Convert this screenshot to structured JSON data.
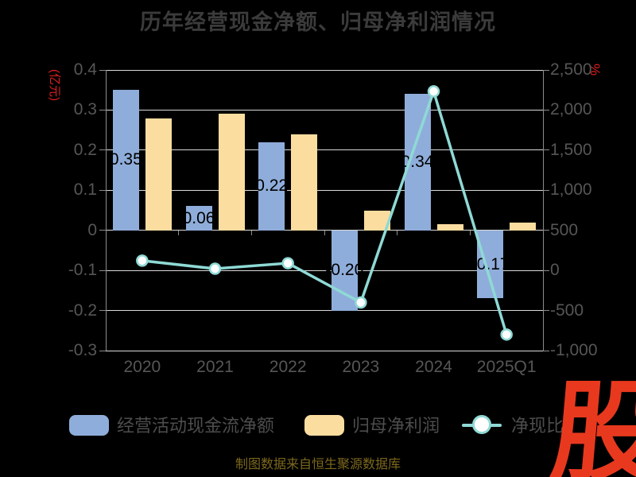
{
  "title": "历年经营现金净额、归母净利润情况",
  "left_axis_unit": "(亿元)",
  "right_axis_unit": "%",
  "source_note": "制图数据来自恒生聚源数据库",
  "logo_text": "股",
  "colors": {
    "background": "#000000",
    "title": "#3b3b3b",
    "tick_label": "#565656",
    "legend_label": "#4d4d4d",
    "bar_blue": "#8FADDA",
    "bar_yellow": "#FCDDA0",
    "line_teal": "#8FD9D5",
    "marker_fill": "#ffffff",
    "bar_label": "#000000",
    "gridline": "#d9d9d9",
    "axis_line": "#8c8c8c",
    "axis_unit_red": "#E01E1E",
    "logo_red": "#E8391E",
    "source_note_gold": "#7D681D"
  },
  "chart_data": {
    "type": "combo",
    "categories": [
      "2020",
      "2021",
      "2022",
      "2023",
      "2024",
      "2025Q1"
    ],
    "series": [
      {
        "id": "operating-cashflow",
        "name": "经营活动现金流净额",
        "type": "bar",
        "axis": "left",
        "values": [
          0.35,
          0.06,
          0.22,
          -0.2,
          0.34,
          -0.17
        ],
        "labels": [
          "0.35",
          "0.06",
          "0.22",
          "-0.20",
          "0.34",
          "-0.17"
        ]
      },
      {
        "id": "net-profit",
        "name": "归母净利润",
        "type": "bar",
        "axis": "left",
        "values": [
          0.28,
          0.29,
          0.24,
          0.05,
          0.015,
          0.02
        ]
      },
      {
        "id": "cash-ratio",
        "name": "净现比",
        "type": "line",
        "axis": "right",
        "values": [
          122,
          21,
          90,
          -400,
          2233,
          -800
        ]
      }
    ],
    "left_axis": {
      "min": -0.3,
      "max": 0.4,
      "tick_step": 0.1,
      "tick_labels": [
        "0.4",
        "0.3",
        "0.2",
        "0.1",
        "0",
        "-0.1",
        "-0.2",
        "-0.3"
      ]
    },
    "right_axis": {
      "min": -1000,
      "max": 2500,
      "tick_step": 500,
      "tick_labels": [
        "2,500",
        "2,000",
        "1,500",
        "1,000",
        "500",
        "0",
        "-500",
        "-1,000"
      ]
    },
    "grid": true,
    "legend_position": "bottom"
  },
  "legend": {
    "items": [
      {
        "label": "经营活动现金流净额",
        "swatch": "bar_blue"
      },
      {
        "label": "归母净利润",
        "swatch": "bar_yellow"
      },
      {
        "label": "净现比",
        "swatch": "line_teal"
      }
    ]
  }
}
